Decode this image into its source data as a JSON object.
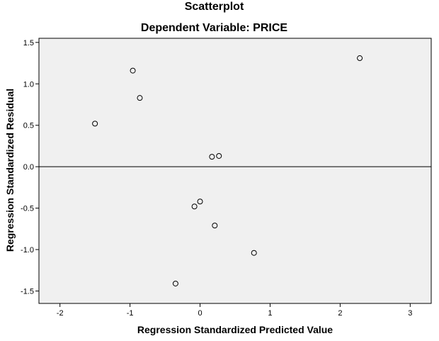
{
  "chart_data": {
    "type": "scatter",
    "title": "Scatterplot",
    "subtitle": "Dependent Variable: PRICE",
    "xlabel": "Regression Standardized Predicted Value",
    "ylabel": "Regression Standardized Residual",
    "xlim": [
      -2.3,
      3.3
    ],
    "ylim": [
      -1.65,
      1.55
    ],
    "xticks": [
      -2,
      -1,
      0,
      1,
      2,
      3
    ],
    "yticks": [
      -1.5,
      -1.0,
      -0.5,
      0.0,
      0.5,
      1.0,
      1.5
    ],
    "xtick_labels": [
      "-2",
      "-1",
      "0",
      "1",
      "2",
      "3"
    ],
    "ytick_labels": [
      "-1.5",
      "-1.0",
      "-0.5",
      "0.0",
      "0.5",
      "1.0",
      "1.5"
    ],
    "reference_line_y": 0,
    "grid": false,
    "plot_background": "#f0f0f0",
    "marker": "hollow-circle",
    "points": [
      {
        "x": -1.5,
        "y": 0.52
      },
      {
        "x": -0.96,
        "y": 1.16
      },
      {
        "x": -0.86,
        "y": 0.83
      },
      {
        "x": 0.17,
        "y": 0.12
      },
      {
        "x": 0.27,
        "y": 0.13
      },
      {
        "x": 2.28,
        "y": 1.31
      },
      {
        "x": -0.08,
        "y": -0.48
      },
      {
        "x": 0.0,
        "y": -0.42
      },
      {
        "x": 0.21,
        "y": -0.71
      },
      {
        "x": 0.77,
        "y": -1.04
      },
      {
        "x": -0.35,
        "y": -1.41
      }
    ]
  }
}
